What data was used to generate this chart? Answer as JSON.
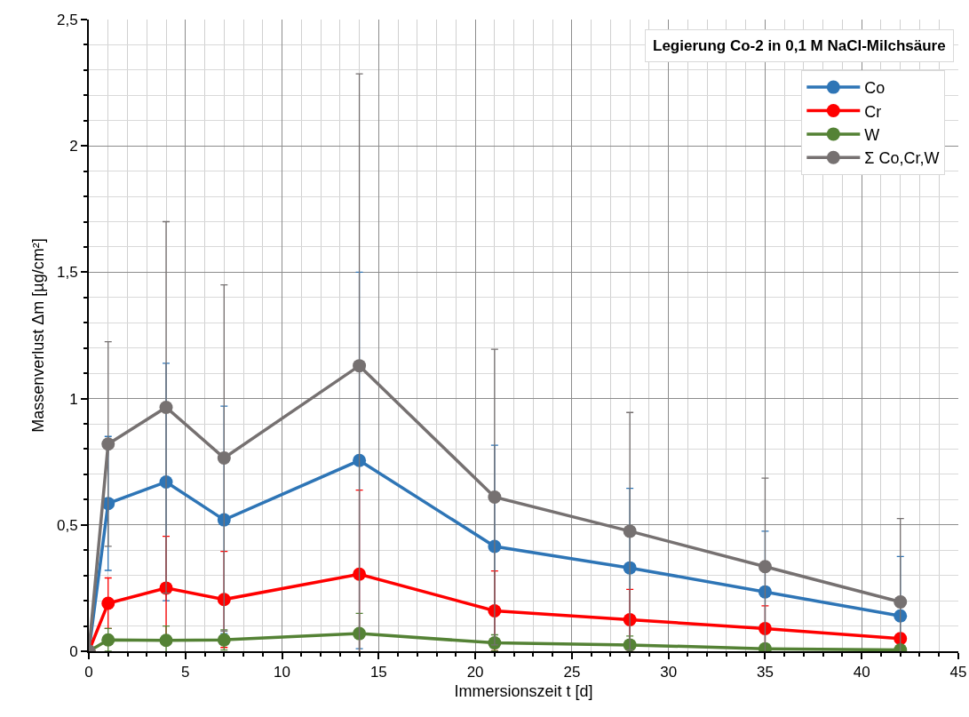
{
  "chart_data": {
    "type": "line",
    "title": "Legierung Co-2 in 0,1 M NaCl-Milchsäure",
    "xlabel": "Immersionszeit t [d]",
    "ylabel": "Massenverlust Δm [µg/cm²]",
    "x": [
      0,
      1,
      4,
      7,
      14,
      21,
      28,
      35,
      42
    ],
    "series": [
      {
        "name": "Co",
        "color": "#2e75b6",
        "values": [
          0,
          0.585,
          0.67,
          0.52,
          0.755,
          0.415,
          0.33,
          0.235,
          0.14
        ],
        "errors": [
          null,
          0.265,
          0.47,
          0.45,
          0.745,
          0.4,
          0.315,
          0.24,
          0.235
        ]
      },
      {
        "name": "Cr",
        "color": "#ff0000",
        "values": [
          0,
          0.19,
          0.25,
          0.205,
          0.305,
          0.16,
          0.125,
          0.09,
          0.05
        ],
        "errors": [
          null,
          0.1,
          0.205,
          0.19,
          0.333,
          0.158,
          0.12,
          0.09,
          null
        ]
      },
      {
        "name": "W",
        "color": "#548235",
        "values": [
          0,
          0.045,
          0.043,
          0.045,
          0.07,
          0.033,
          0.025,
          0.01,
          0.005
        ],
        "errors": [
          null,
          0.045,
          0.057,
          0.04,
          0.08,
          0.032,
          0.035,
          null,
          null
        ]
      },
      {
        "name": "Σ Co,Cr,W",
        "color": "#767171",
        "values": [
          0,
          0.82,
          0.965,
          0.765,
          1.13,
          0.61,
          0.475,
          0.335,
          0.195
        ],
        "errors": [
          null,
          0.405,
          0.735,
          0.685,
          1.155,
          0.585,
          0.47,
          0.35,
          0.33
        ]
      }
    ],
    "xlim": [
      0,
      45
    ],
    "xticks": [
      0,
      5,
      10,
      15,
      20,
      25,
      30,
      35,
      40,
      45
    ],
    "ylim": [
      0,
      2.5
    ],
    "yticks": [
      0,
      {
        "value": 0.5,
        "label": "0,5"
      },
      1,
      {
        "value": 1.5,
        "label": "1,5"
      },
      2,
      {
        "value": 2.5,
        "label": "2,5"
      }
    ],
    "grid": true,
    "legend": "top right",
    "marker": "circle",
    "line_style": "solid"
  }
}
